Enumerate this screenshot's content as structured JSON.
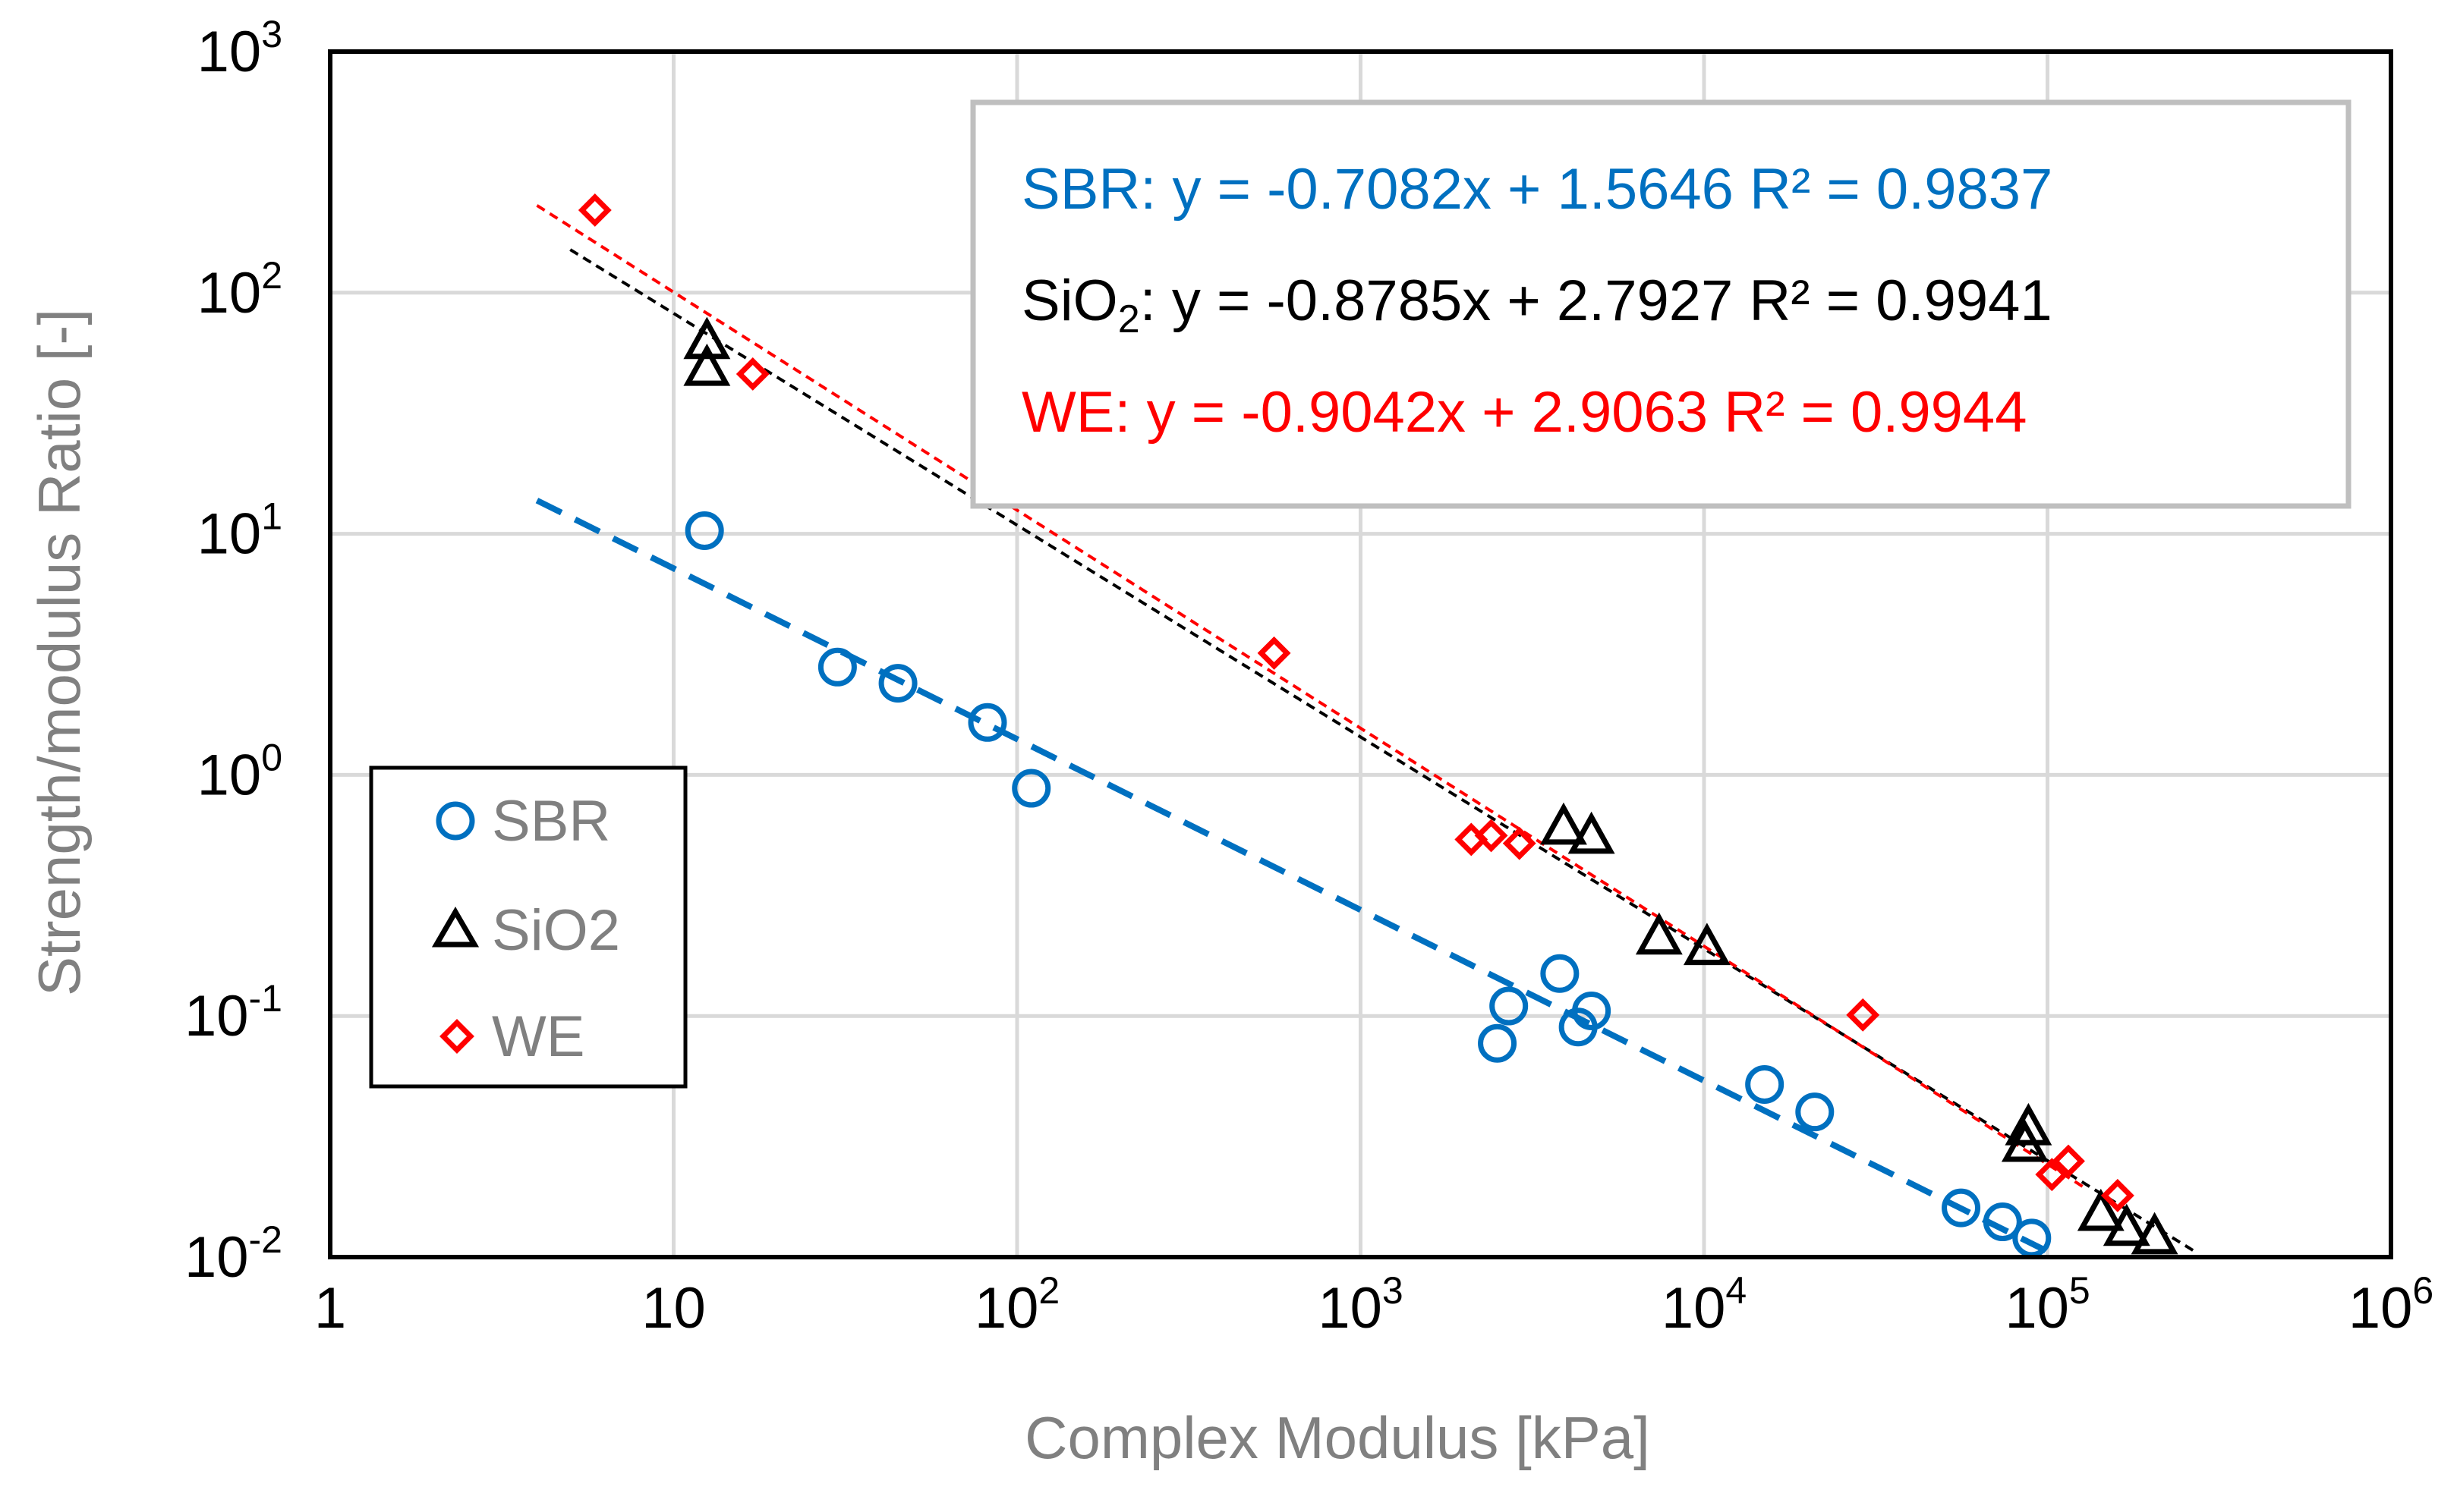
{
  "chart_data": {
    "type": "scatter",
    "xscale": "log",
    "yscale": "log",
    "xlim": [
      1,
      1000000
    ],
    "ylim": [
      0.01,
      1000
    ],
    "xlabel": "Complex  Modulus  [kPa]",
    "ylabel": "Strength/modulus  Ratio [-]",
    "x_ticks": [
      {
        "base": "1",
        "exp": ""
      },
      {
        "base": "10",
        "exp": ""
      },
      {
        "base": "10",
        "exp": "2"
      },
      {
        "base": "10",
        "exp": "3"
      },
      {
        "base": "10",
        "exp": "4"
      },
      {
        "base": "10",
        "exp": "5"
      },
      {
        "base": "10",
        "exp": "6"
      }
    ],
    "y_ticks": [
      {
        "base": "10",
        "exp": "-2"
      },
      {
        "base": "10",
        "exp": "-1"
      },
      {
        "base": "10",
        "exp": "0"
      },
      {
        "base": "10",
        "exp": "1"
      },
      {
        "base": "10",
        "exp": "2"
      },
      {
        "base": "10",
        "exp": "3"
      }
    ],
    "series": [
      {
        "name": "SBR",
        "color": "#0070c0",
        "marker": "circle",
        "points": [
          [
            12.3,
            10.3
          ],
          [
            30,
            2.8
          ],
          [
            45,
            2.4
          ],
          [
            82,
            1.65
          ],
          [
            110,
            0.88
          ],
          [
            2500,
            0.077
          ],
          [
            2700,
            0.11
          ],
          [
            3800,
            0.15
          ],
          [
            4300,
            0.09
          ],
          [
            4700,
            0.105
          ],
          [
            15000,
            0.052
          ],
          [
            21000,
            0.04
          ],
          [
            56000,
            0.016
          ],
          [
            74000,
            0.014
          ],
          [
            90000,
            0.012
          ]
        ],
        "trendline": {
          "slope": -0.7082,
          "intercept": 1.5646,
          "x_range": [
            4,
            250000
          ],
          "style": "dashed"
        }
      },
      {
        "name": "SiO2",
        "color": "#000000",
        "marker": "triangle",
        "points": [
          [
            12.5,
            62
          ],
          [
            12.5,
            48
          ],
          [
            3900,
            0.6
          ],
          [
            4700,
            0.55
          ],
          [
            7400,
            0.21
          ],
          [
            10200,
            0.19
          ],
          [
            88000,
            0.034
          ],
          [
            86000,
            0.029
          ],
          [
            143000,
            0.015
          ],
          [
            170000,
            0.013
          ],
          [
            205000,
            0.012
          ]
        ],
        "trendline": {
          "slope": -0.8785,
          "intercept": 2.7927,
          "x_range": [
            5,
            270000
          ],
          "style": "dotted"
        }
      },
      {
        "name": "WE",
        "color": "#ff0000",
        "marker": "diamond",
        "points": [
          [
            5.9,
            220
          ],
          [
            17,
            46
          ],
          [
            560,
            3.2
          ],
          [
            2100,
            0.54
          ],
          [
            2400,
            0.56
          ],
          [
            2900,
            0.52
          ],
          [
            29000,
            0.101
          ],
          [
            103000,
            0.022
          ],
          [
            115000,
            0.025
          ],
          [
            160000,
            0.018
          ]
        ],
        "trendline": {
          "slope": -0.9042,
          "intercept": 2.9063,
          "x_range": [
            4,
            130000
          ],
          "style": "dotted"
        }
      }
    ],
    "equations": [
      {
        "name": "SBR",
        "color": "#0070c0",
        "text": "SBR: y = -0.7082x + 1.5646  R² = 0.9837"
      },
      {
        "name": "SiO2",
        "color": "#000000",
        "prefix": "SiO",
        "sub": "2",
        "text": ": y = -0.8785x + 2.7927  R² = 0.9941"
      },
      {
        "name": "WE",
        "color": "#ff0000",
        "text": "WE:  y = -0.9042x + 2.9063  R² = 0.9944"
      }
    ],
    "legend": {
      "position": "lower-left",
      "entries": [
        {
          "label": "SBR",
          "marker": "circle",
          "color": "#0070c0"
        },
        {
          "label": "SiO2",
          "marker": "triangle",
          "color": "#000000"
        },
        {
          "label": "WE",
          "marker": "diamond",
          "color": "#ff0000"
        }
      ]
    },
    "grid": true
  }
}
